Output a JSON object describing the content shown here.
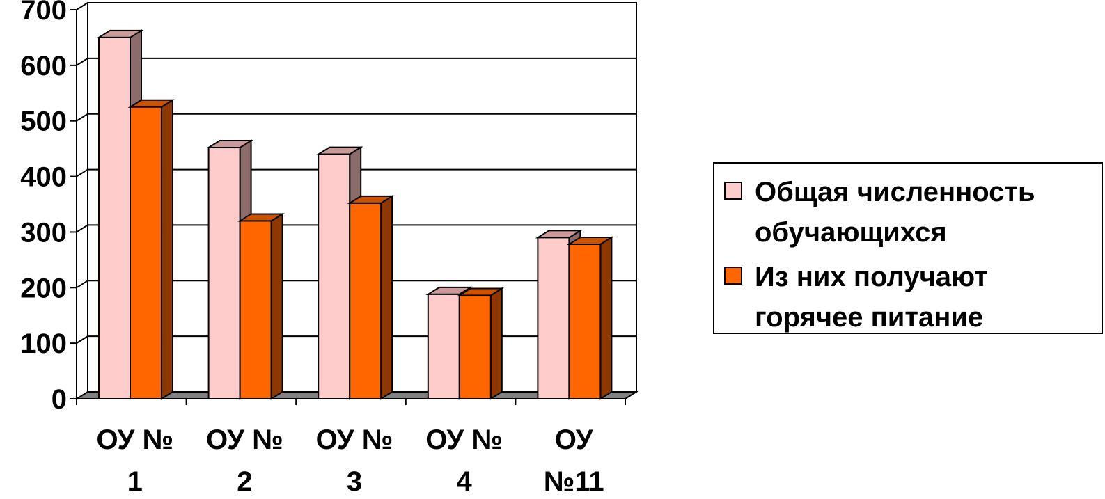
{
  "chart_data": {
    "type": "bar",
    "categories": [
      [
        "ОУ №",
        "1"
      ],
      [
        "ОУ №",
        "2"
      ],
      [
        "ОУ №",
        "3"
      ],
      [
        "ОУ №",
        "4"
      ],
      [
        "ОУ",
        "№11"
      ]
    ],
    "series": [
      {
        "name": "Общая численность обучающихся",
        "values": [
          650,
          452,
          440,
          188,
          290
        ],
        "color": "#FFCCCC",
        "side_color": "#8C6B6B",
        "top_color": "#CC9999"
      },
      {
        "name": "Из них получают горячее питание",
        "values": [
          525,
          320,
          352,
          186,
          278
        ],
        "color": "#FF6600",
        "side_color": "#8C3800",
        "top_color": "#CC5200"
      }
    ],
    "ylim": [
      0,
      700
    ],
    "yticks": [
      "0",
      "100",
      "200",
      "300",
      "400",
      "500",
      "600",
      "700"
    ],
    "grid": true,
    "style": "3d-clustered-column",
    "legend_position": "right"
  },
  "legend": {
    "items": [
      {
        "lines": [
          "Общая численность",
          "обучающихся"
        ]
      },
      {
        "lines": [
          "Из них получают",
          "горячее питание"
        ]
      }
    ]
  }
}
